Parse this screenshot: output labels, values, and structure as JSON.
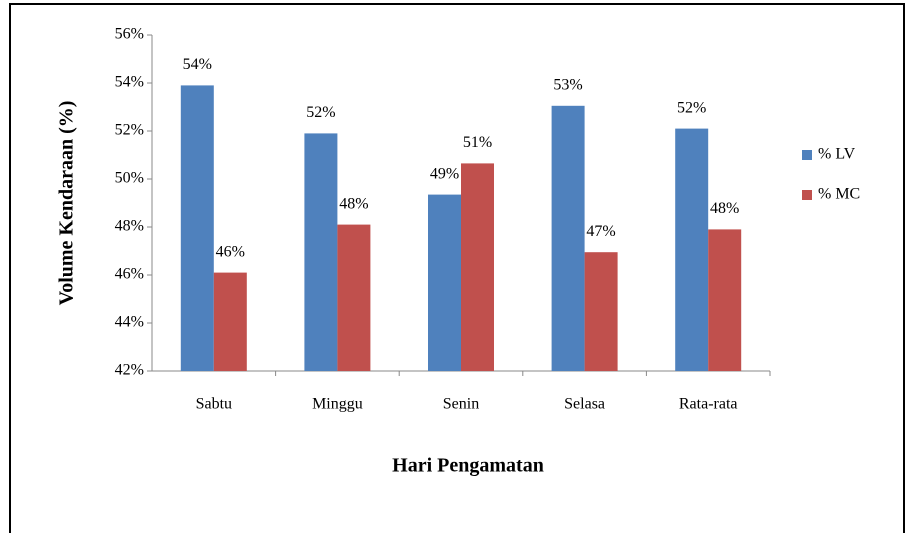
{
  "chart_data": {
    "type": "bar",
    "x_label": "Hari Pengamatan",
    "y_label": "Volume Kendaraan (%)",
    "categories": [
      "Sabtu",
      "Minggu",
      "Senin",
      "Selasa",
      "Rata-rata"
    ],
    "series": [
      {
        "name": "% LV",
        "color": "#4f81bd",
        "values": [
          53.9,
          51.9,
          49.35,
          53.05,
          52.1
        ],
        "value_labels": [
          "54%",
          "52%",
          "49%",
          "53%",
          "52%"
        ]
      },
      {
        "name": "% MC",
        "color": "#c0504d",
        "values": [
          46.1,
          48.1,
          50.65,
          46.95,
          47.9
        ],
        "value_labels": [
          "46%",
          "48%",
          "51%",
          "47%",
          "48%"
        ]
      }
    ],
    "ylim": [
      42,
      56
    ],
    "yticks": [
      {
        "value": 42,
        "label": "42%"
      },
      {
        "value": 44,
        "label": "44%"
      },
      {
        "value": 46,
        "label": "46%"
      },
      {
        "value": 48,
        "label": "48%"
      },
      {
        "value": 50,
        "label": "50%"
      },
      {
        "value": 52,
        "label": "52%"
      },
      {
        "value": 54,
        "label": "54%"
      },
      {
        "value": 56,
        "label": "56%"
      }
    ],
    "legend": "right"
  }
}
